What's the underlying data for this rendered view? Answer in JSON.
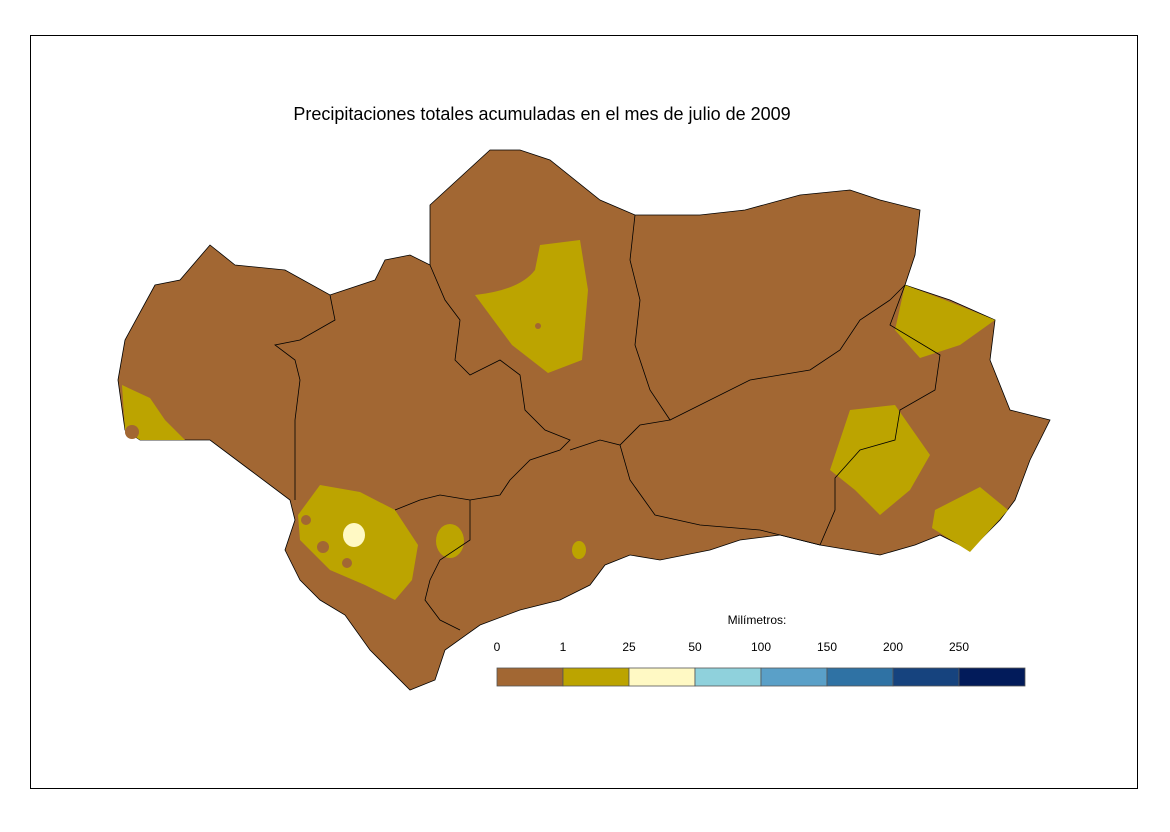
{
  "title": "Precipitaciones totales acumuladas en el mes de julio de 2009",
  "legend": {
    "title": "Milímetros:",
    "labels": [
      "0",
      "1",
      "25",
      "50",
      "100",
      "150",
      "200",
      "250"
    ],
    "colors": [
      "#a26733",
      "#bca400",
      "#fff9c4",
      "#8fd1dc",
      "#5aa0c8",
      "#2f72a4",
      "#16437e",
      "#021b5a"
    ]
  }
}
